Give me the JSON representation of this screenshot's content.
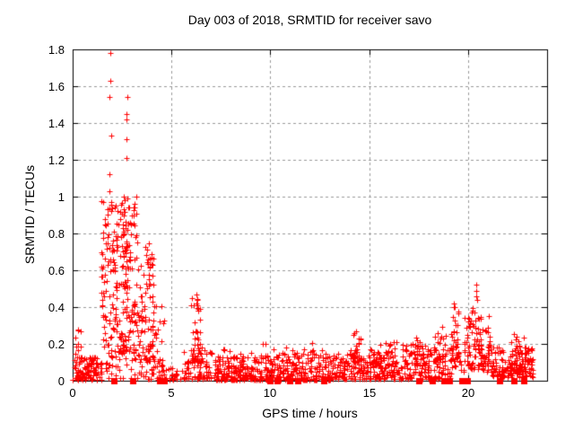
{
  "figure": {
    "title": "Day 003 of 2018, SRMTID for receiver savo",
    "xlabel": "GPS time / hours",
    "ylabel": "SRMTID / TECUs",
    "background_color": "#ffffff",
    "border_color": "#000000",
    "grid_color": "#9a9a9a",
    "text_color": "#000000",
    "marker_color": "#ff0000"
  },
  "chart_data": {
    "type": "scatter",
    "title": "Day 003 of 2018, SRMTID for receiver savo",
    "xlabel": "GPS time / hours",
    "ylabel": "SRMTID / TECUs",
    "xlim": [
      0,
      24
    ],
    "ylim": [
      0,
      1.8
    ],
    "xticks": [
      0,
      5,
      10,
      15,
      20
    ],
    "xtick_labels": [
      "0",
      "5",
      "10",
      "15",
      "20"
    ],
    "yticks": [
      0,
      0.2,
      0.4,
      0.6,
      0.8,
      1.0,
      1.2,
      1.4,
      1.6,
      1.8
    ],
    "ytick_labels": [
      "0",
      "0.2",
      "0.4",
      "0.6",
      "0.8",
      "1",
      "1.2",
      "1.4",
      "1.6",
      "1.8"
    ],
    "grid": true,
    "grid_style": "dashed",
    "legend": "none",
    "prng_seed": 7,
    "series": [
      {
        "name": "srmtid-plus-markers",
        "marker": "plus",
        "color": "#ff0000",
        "peak_points": [
          [
            1.9,
            1.78
          ],
          [
            1.9,
            1.63
          ],
          [
            1.88,
            1.54
          ],
          [
            2.78,
            1.54
          ],
          [
            2.72,
            1.45
          ],
          [
            2.74,
            1.42
          ],
          [
            1.94,
            1.33
          ],
          [
            2.73,
            1.31
          ],
          [
            2.73,
            1.21
          ],
          [
            1.86,
            1.12
          ],
          [
            1.85,
            1.03
          ],
          [
            2.6,
            1.0
          ],
          [
            2.64,
            0.98
          ],
          [
            2.2,
            0.95
          ],
          [
            1.78,
            0.93
          ],
          [
            2.6,
            0.93
          ],
          [
            3.0,
            0.9
          ],
          [
            1.62,
            0.88
          ],
          [
            2.95,
            0.85
          ],
          [
            6.27,
            0.47
          ],
          [
            6.3,
            0.44
          ],
          [
            6.32,
            0.41
          ],
          [
            6.35,
            0.38
          ],
          [
            20.42,
            0.52
          ],
          [
            20.43,
            0.49
          ],
          [
            20.4,
            0.46
          ],
          [
            20.45,
            0.44
          ],
          [
            19.3,
            0.42
          ],
          [
            19.33,
            0.4
          ],
          [
            14.35,
            0.27
          ]
        ],
        "density_clusters": [
          {
            "x0": 0.0,
            "x1": 1.5,
            "n": 110,
            "y0": 0.005,
            "y1": 0.13,
            "p": 1.8
          },
          {
            "x0": 0.1,
            "x1": 0.45,
            "n": 10,
            "y0": 0.1,
            "y1": 0.3,
            "p": 1.2
          },
          {
            "x0": 1.5,
            "x1": 4.3,
            "n": 60,
            "y0": 0.01,
            "y1": 0.2,
            "p": 1.5
          },
          {
            "x0": 1.45,
            "x1": 2.45,
            "n": 120,
            "y0": 0.15,
            "y1": 1.0,
            "p": 1.3
          },
          {
            "x0": 2.45,
            "x1": 3.25,
            "n": 110,
            "y0": 0.15,
            "y1": 1.0,
            "p": 1.5
          },
          {
            "x0": 2.5,
            "x1": 2.8,
            "n": 20,
            "y0": 0.5,
            "y1": 0.85,
            "p": 1.0
          },
          {
            "x0": 3.2,
            "x1": 4.1,
            "n": 70,
            "y0": 0.1,
            "y1": 0.75,
            "p": 1.6
          },
          {
            "x0": 3.75,
            "x1": 4.05,
            "n": 12,
            "y0": 0.5,
            "y1": 0.75,
            "p": 1.0
          },
          {
            "x0": 4.0,
            "x1": 4.65,
            "n": 30,
            "y0": 0.05,
            "y1": 0.5,
            "p": 1.7
          },
          {
            "x0": 4.3,
            "x1": 5.6,
            "n": 30,
            "y0": 0.005,
            "y1": 0.08,
            "p": 1.8
          },
          {
            "x0": 5.6,
            "x1": 7.2,
            "n": 80,
            "y0": 0.01,
            "y1": 0.17,
            "p": 1.8
          },
          {
            "x0": 6.0,
            "x1": 6.6,
            "n": 45,
            "y0": 0.1,
            "y1": 0.45,
            "p": 1.5
          },
          {
            "x0": 7.2,
            "x1": 9.5,
            "n": 170,
            "y0": 0.005,
            "y1": 0.13,
            "p": 1.8
          },
          {
            "x0": 7.2,
            "x1": 9.5,
            "n": 20,
            "y0": 0.1,
            "y1": 0.18,
            "p": 1.5
          },
          {
            "x0": 9.5,
            "x1": 13.6,
            "n": 260,
            "y0": 0.005,
            "y1": 0.14,
            "p": 1.8
          },
          {
            "x0": 9.6,
            "x1": 13.5,
            "n": 30,
            "y0": 0.12,
            "y1": 0.22,
            "p": 1.5
          },
          {
            "x0": 13.6,
            "x1": 16.6,
            "n": 200,
            "y0": 0.01,
            "y1": 0.17,
            "p": 1.6
          },
          {
            "x0": 14.1,
            "x1": 14.6,
            "n": 18,
            "y0": 0.08,
            "y1": 0.27,
            "p": 1.3
          },
          {
            "x0": 15.2,
            "x1": 16.4,
            "n": 30,
            "y0": 0.08,
            "y1": 0.22,
            "p": 1.4
          },
          {
            "x0": 16.6,
            "x1": 19.2,
            "n": 150,
            "y0": 0.01,
            "y1": 0.2,
            "p": 1.6
          },
          {
            "x0": 17.3,
            "x1": 18.0,
            "n": 25,
            "y0": 0.08,
            "y1": 0.25,
            "p": 1.4
          },
          {
            "x0": 18.3,
            "x1": 18.9,
            "n": 20,
            "y0": 0.1,
            "y1": 0.3,
            "p": 1.4
          },
          {
            "x0": 19.15,
            "x1": 19.6,
            "n": 30,
            "y0": 0.1,
            "y1": 0.42,
            "p": 1.3
          },
          {
            "x0": 19.2,
            "x1": 21.2,
            "n": 60,
            "y0": 0.05,
            "y1": 0.2,
            "p": 1.2
          },
          {
            "x0": 19.8,
            "x1": 21.1,
            "n": 80,
            "y0": 0.08,
            "y1": 0.42,
            "p": 1.4
          },
          {
            "x0": 21.2,
            "x1": 23.3,
            "n": 160,
            "y0": 0.02,
            "y1": 0.19,
            "p": 1.5
          },
          {
            "x0": 22.1,
            "x1": 23.0,
            "n": 40,
            "y0": 0.05,
            "y1": 0.26,
            "p": 1.5
          }
        ]
      },
      {
        "name": "zero-flag-squares",
        "marker": "filled-square",
        "color": "#ff0000",
        "y": 0,
        "x": [
          2.1,
          3.05,
          4.4,
          4.65,
          10.0,
          10.35,
          11.0,
          11.4,
          12.7,
          17.5,
          18.2,
          18.8,
          19.05,
          19.7,
          19.95,
          21.6,
          22.3,
          22.8
        ]
      }
    ]
  }
}
